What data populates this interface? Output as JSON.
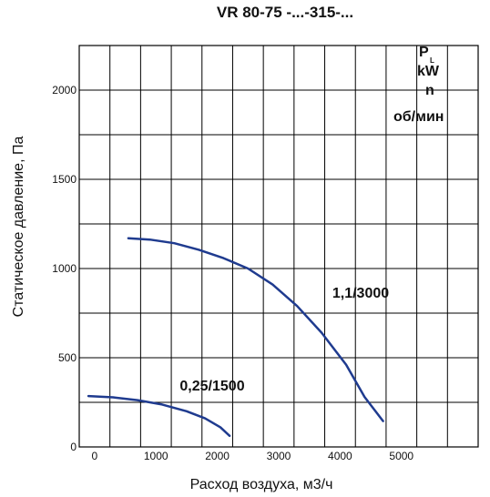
{
  "chart_data": {
    "type": "line",
    "title": "VR 80-75 -...-315-...",
    "xlabel": "Расход воздуха, м3/ч",
    "ylabel": "Статическое давление, Па",
    "xlim": [
      -250,
      6250
    ],
    "ylim": [
      0,
      2250
    ],
    "grid": true,
    "x_ticks": [
      "0",
      "1000",
      "2000",
      "3000",
      "4000",
      "5000"
    ],
    "y_ticks": [
      "0",
      "500",
      "1000",
      "1500",
      "2000"
    ],
    "legend": {
      "lines": [
        "P",
        "kW",
        "n",
        "об/мин"
      ],
      "subscript": "L",
      "placement": "top-right"
    },
    "colors": {
      "curve": "#1f3b8f",
      "grid": "#000000"
    },
    "series": [
      {
        "name": "0,25/1500",
        "x": [
          -100,
          300,
          700,
          1100,
          1500,
          1800,
          2050,
          2200
        ],
        "y": [
          285,
          278,
          262,
          238,
          200,
          160,
          110,
          62
        ]
      },
      {
        "name": "1,1/3000",
        "x": [
          550,
          900,
          1300,
          1700,
          2100,
          2500,
          2900,
          3300,
          3700,
          4100,
          4400,
          4700
        ],
        "y": [
          1170,
          1162,
          1142,
          1105,
          1058,
          1000,
          910,
          790,
          640,
          460,
          280,
          145
        ]
      }
    ]
  }
}
